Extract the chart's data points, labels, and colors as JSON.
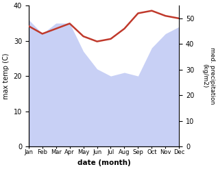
{
  "months": [
    "Jan",
    "Feb",
    "Mar",
    "Apr",
    "May",
    "Jun",
    "Jul",
    "Aug",
    "Sep",
    "Oct",
    "Nov",
    "Dec"
  ],
  "max_temp": [
    36,
    32,
    35,
    35,
    27,
    22,
    20,
    21,
    20,
    28,
    32,
    34
  ],
  "med_precip": [
    47,
    44,
    46,
    48,
    43,
    41,
    42,
    46,
    52,
    53,
    51,
    50
  ],
  "fill_color": "#c8d0f5",
  "precip_color": "#c0392b",
  "left_ylabel": "max temp (C)",
  "right_ylabel": "med. precipitation\n(kg/m2)",
  "xlabel": "date (month)",
  "ylim_left": [
    0,
    40
  ],
  "ylim_right": [
    0,
    55
  ],
  "bg_color": "#ffffff"
}
